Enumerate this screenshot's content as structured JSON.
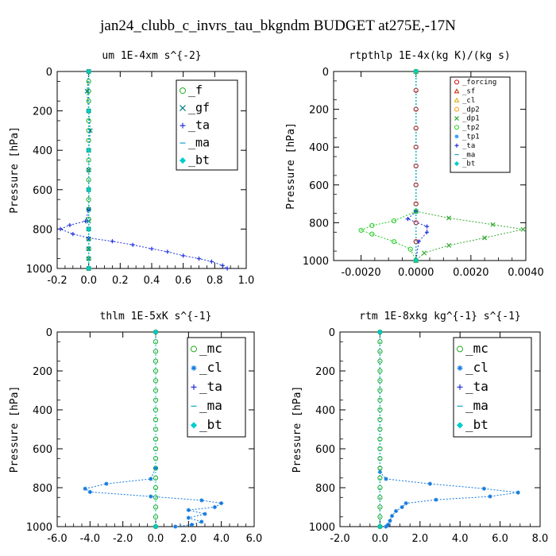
{
  "title": "jan24_clubb_c_invrs_tau_bkgndm  BUDGET at275E,-17N",
  "chart_data": [
    {
      "type": "line",
      "title": "um  1E-4xm s^{-2}",
      "ylabel": "Pressure [hPa]",
      "xlim": [
        -0.2,
        1.0
      ],
      "ylim": [
        0,
        1000
      ],
      "y_inverted": true,
      "xticks": [
        "-0.2",
        "0.0",
        "0.2",
        "0.4",
        "0.6",
        "0.8",
        "1.0"
      ],
      "xtick_values": [
        -0.2,
        0.0,
        0.2,
        0.4,
        0.6,
        0.8,
        1.0
      ],
      "yticks": [
        "0",
        "200",
        "400",
        "600",
        "800",
        "1000"
      ],
      "ytick_values": [
        0,
        200,
        400,
        600,
        800,
        1000
      ],
      "legend_position": "top-right",
      "legend_size": "large",
      "series": [
        {
          "name": "_f",
          "color": "#22aa22",
          "marker": "circle",
          "points": [
            [
              0,
              0
            ],
            [
              0,
              50
            ],
            [
              0,
              100
            ],
            [
              0,
              150
            ],
            [
              0,
              200
            ],
            [
              0,
              250
            ],
            [
              0,
              300
            ],
            [
              0,
              350
            ],
            [
              0,
              400
            ],
            [
              0,
              450
            ],
            [
              0,
              500
            ],
            [
              0,
              550
            ],
            [
              0,
              600
            ],
            [
              0,
              650
            ],
            [
              0,
              700
            ],
            [
              0,
              750
            ],
            [
              0,
              800
            ],
            [
              0,
              850
            ],
            [
              0,
              900
            ],
            [
              0,
              950
            ],
            [
              0,
              1000
            ]
          ]
        },
        {
          "name": "_gf",
          "color": "#008080",
          "marker": "x",
          "points": [
            [
              0,
              0
            ],
            [
              -0.01,
              100
            ],
            [
              0,
              200
            ],
            [
              0.01,
              300
            ],
            [
              0,
              400
            ],
            [
              0,
              500
            ],
            [
              0,
              600
            ],
            [
              0,
              700
            ],
            [
              0,
              760
            ],
            [
              0,
              800
            ],
            [
              0,
              850
            ],
            [
              0,
              900
            ],
            [
              0,
              950
            ],
            [
              0,
              1000
            ]
          ]
        },
        {
          "name": "_ta",
          "color": "#2233dd",
          "marker": "plus",
          "points": [
            [
              0,
              0
            ],
            [
              0,
              700
            ],
            [
              -0.02,
              760
            ],
            [
              -0.12,
              780
            ],
            [
              -0.18,
              800
            ],
            [
              -0.1,
              825
            ],
            [
              0.0,
              845
            ],
            [
              0.15,
              862
            ],
            [
              0.28,
              880
            ],
            [
              0.4,
              900
            ],
            [
              0.5,
              915
            ],
            [
              0.6,
              935
            ],
            [
              0.7,
              950
            ],
            [
              0.78,
              965
            ],
            [
              0.85,
              985
            ],
            [
              0.88,
              1000
            ]
          ]
        },
        {
          "name": "_ma",
          "color": "#22aacc",
          "marker": "dash",
          "points": [
            [
              0,
              0
            ],
            [
              0,
              1000
            ]
          ]
        },
        {
          "name": "_bt",
          "color": "#00cccc",
          "marker": "diamond",
          "points": [
            [
              0,
              0
            ],
            [
              0,
              200
            ],
            [
              0,
              400
            ],
            [
              0,
              600
            ],
            [
              0,
              800
            ],
            [
              0,
              1000
            ]
          ]
        }
      ]
    },
    {
      "type": "line",
      "title": "rtpthlp  1E-4x(kg K)/(kg s)",
      "ylabel": "Pressure [hPa]",
      "xlim": [
        -0.003,
        0.004
      ],
      "ylim": [
        0,
        1000
      ],
      "y_inverted": true,
      "xticks": [
        "-0.0020",
        "0.0000",
        "0.0020",
        "0.0040"
      ],
      "xtick_values": [
        -0.002,
        0.0,
        0.002,
        0.004
      ],
      "yticks": [
        "0",
        "200",
        "400",
        "600",
        "800",
        "1000"
      ],
      "ytick_values": [
        0,
        200,
        400,
        600,
        800,
        1000
      ],
      "legend_position": "top-right",
      "legend_size": "small",
      "series": [
        {
          "name": "_forcing",
          "color": "#cc0000",
          "marker": "circle",
          "points": [
            [
              0,
              0
            ],
            [
              0,
              100
            ],
            [
              0,
              200
            ],
            [
              0,
              300
            ],
            [
              0,
              400
            ],
            [
              0,
              500
            ],
            [
              0,
              600
            ],
            [
              0,
              700
            ],
            [
              0,
              800
            ],
            [
              0,
              900
            ],
            [
              0,
              1000
            ]
          ]
        },
        {
          "name": "_sf",
          "color": "#cc2200",
          "marker": "triangle",
          "points": [
            [
              0,
              0
            ],
            [
              0,
              1000
            ]
          ]
        },
        {
          "name": "_cl",
          "color": "#ddaa00",
          "marker": "triangle",
          "points": [
            [
              0,
              0
            ],
            [
              0,
              1000
            ]
          ]
        },
        {
          "name": "_dp2",
          "color": "#ff9900",
          "marker": "circle",
          "points": [
            [
              0,
              0
            ],
            [
              0,
              1000
            ]
          ]
        },
        {
          "name": "_dp1",
          "color": "#33aa33",
          "marker": "x",
          "points": [
            [
              0,
              0
            ],
            [
              0,
              740
            ],
            [
              0.0012,
              775
            ],
            [
              0.0028,
              810
            ],
            [
              0.0039,
              835
            ],
            [
              0.0025,
              880
            ],
            [
              0.0012,
              920
            ],
            [
              0.0003,
              960
            ],
            [
              0,
              1000
            ]
          ]
        },
        {
          "name": "_tp2",
          "color": "#22cc22",
          "marker": "circle",
          "points": [
            [
              0,
              0
            ],
            [
              0,
              740
            ],
            [
              -0.0008,
              790
            ],
            [
              -0.0016,
              815
            ],
            [
              -0.002,
              840
            ],
            [
              -0.0016,
              860
            ],
            [
              -0.0008,
              900
            ],
            [
              -0.0002,
              940
            ],
            [
              0,
              1000
            ]
          ]
        },
        {
          "name": "_tp1",
          "color": "#3399ff",
          "marker": "asterisk",
          "points": [
            [
              0,
              0
            ],
            [
              0,
              1000
            ]
          ]
        },
        {
          "name": "_ta",
          "color": "#2233dd",
          "marker": "plus",
          "points": [
            [
              0,
              0
            ],
            [
              0,
              740
            ],
            [
              -0.0003,
              780
            ],
            [
              0.0004,
              820
            ],
            [
              0.0004,
              850
            ],
            [
              0.0001,
              900
            ],
            [
              0,
              1000
            ]
          ]
        },
        {
          "name": "_ma",
          "color": "#22aacc",
          "marker": "dash",
          "points": [
            [
              0,
              0
            ],
            [
              0,
              1000
            ]
          ]
        },
        {
          "name": "_bt",
          "color": "#00cccc",
          "marker": "diamond",
          "points": [
            [
              0,
              0
            ],
            [
              0,
              1000
            ]
          ]
        }
      ]
    },
    {
      "type": "line",
      "title": "thlm  1E-5xK s^{-1}",
      "ylabel": "Pressure [hPa]",
      "xlim": [
        -6.0,
        6.0
      ],
      "ylim": [
        0,
        1000
      ],
      "y_inverted": true,
      "xticks": [
        "-6.0",
        "-4.0",
        "-2.0",
        "0.0",
        "2.0",
        "4.0",
        "6.0"
      ],
      "xtick_values": [
        -6.0,
        -4.0,
        -2.0,
        0.0,
        2.0,
        4.0,
        6.0
      ],
      "yticks": [
        "0",
        "200",
        "400",
        "600",
        "800",
        "1000"
      ],
      "ytick_values": [
        0,
        200,
        400,
        600,
        800,
        1000
      ],
      "legend_position": "top-right",
      "legend_size": "large",
      "series": [
        {
          "name": "_mc",
          "color": "#22aa22",
          "marker": "circle",
          "points": [
            [
              0,
              0
            ],
            [
              0,
              50
            ],
            [
              0,
              100
            ],
            [
              0,
              150
            ],
            [
              0,
              200
            ],
            [
              0,
              250
            ],
            [
              0,
              300
            ],
            [
              0,
              350
            ],
            [
              0,
              400
            ],
            [
              0,
              450
            ],
            [
              0,
              500
            ],
            [
              0,
              550
            ],
            [
              0,
              600
            ],
            [
              0,
              650
            ],
            [
              0,
              700
            ],
            [
              0,
              750
            ],
            [
              0,
              800
            ],
            [
              0,
              850
            ],
            [
              0,
              900
            ],
            [
              0,
              950
            ],
            [
              0,
              1000
            ]
          ]
        },
        {
          "name": "_cl",
          "color": "#1177dd",
          "marker": "asterisk",
          "points": [
            [
              0,
              0
            ],
            [
              0,
              700
            ],
            [
              -0.3,
              755
            ],
            [
              -3.0,
              780
            ],
            [
              -4.3,
              805
            ],
            [
              -4.0,
              822
            ],
            [
              -0.3,
              845
            ],
            [
              2.8,
              865
            ],
            [
              4.0,
              880
            ],
            [
              3.6,
              900
            ],
            [
              2.0,
              915
            ],
            [
              3.0,
              935
            ],
            [
              2.0,
              955
            ],
            [
              2.8,
              975
            ],
            [
              2.2,
              990
            ],
            [
              1.2,
              1000
            ]
          ]
        },
        {
          "name": "_ta",
          "color": "#2233dd",
          "marker": "plus",
          "points": [
            [
              0,
              0
            ],
            [
              0,
              1000
            ]
          ]
        },
        {
          "name": "_ma",
          "color": "#22aacc",
          "marker": "dash",
          "points": [
            [
              0,
              0
            ],
            [
              0,
              1000
            ]
          ]
        },
        {
          "name": "_bt",
          "color": "#00cccc",
          "marker": "diamond",
          "points": [
            [
              0,
              0
            ],
            [
              0,
              1000
            ]
          ]
        }
      ]
    },
    {
      "type": "line",
      "title": "rtm  1E-8xkg kg^{-1} s^{-1}",
      "ylabel": "Pressure [hPa]",
      "xlim": [
        -2.0,
        8.0
      ],
      "ylim": [
        0,
        1000
      ],
      "y_inverted": true,
      "xticks": [
        "-2.0",
        "0.0",
        "2.0",
        "4.0",
        "6.0",
        "8.0"
      ],
      "xtick_values": [
        -2.0,
        0.0,
        2.0,
        4.0,
        6.0,
        8.0
      ],
      "yticks": [
        "0",
        "200",
        "400",
        "600",
        "800",
        "1000"
      ],
      "ytick_values": [
        0,
        200,
        400,
        600,
        800,
        1000
      ],
      "legend_position": "top-right",
      "legend_size": "large",
      "series": [
        {
          "name": "_mc",
          "color": "#22aa22",
          "marker": "circle",
          "points": [
            [
              0,
              0
            ],
            [
              0,
              50
            ],
            [
              0,
              100
            ],
            [
              0,
              150
            ],
            [
              0,
              200
            ],
            [
              0,
              250
            ],
            [
              0,
              300
            ],
            [
              0,
              350
            ],
            [
              0,
              400
            ],
            [
              0,
              450
            ],
            [
              0,
              500
            ],
            [
              0,
              550
            ],
            [
              0,
              600
            ],
            [
              0,
              650
            ],
            [
              0,
              700
            ],
            [
              0,
              750
            ],
            [
              0,
              800
            ],
            [
              0,
              850
            ],
            [
              0,
              900
            ],
            [
              0,
              950
            ],
            [
              0,
              1000
            ]
          ]
        },
        {
          "name": "_cl",
          "color": "#1177dd",
          "marker": "asterisk",
          "points": [
            [
              0,
              0
            ],
            [
              0,
              720
            ],
            [
              0.3,
              755
            ],
            [
              2.5,
              780
            ],
            [
              5.2,
              805
            ],
            [
              6.9,
              825
            ],
            [
              5.5,
              845
            ],
            [
              2.8,
              862
            ],
            [
              1.3,
              880
            ],
            [
              1.1,
              900
            ],
            [
              0.8,
              920
            ],
            [
              0.6,
              945
            ],
            [
              0.5,
              970
            ],
            [
              0.4,
              990
            ],
            [
              0.3,
              1000
            ]
          ]
        },
        {
          "name": "_ta",
          "color": "#2233dd",
          "marker": "plus",
          "points": [
            [
              0,
              0
            ],
            [
              0,
              1000
            ]
          ]
        },
        {
          "name": "_ma",
          "color": "#22aacc",
          "marker": "dash",
          "points": [
            [
              0,
              0
            ],
            [
              0,
              1000
            ]
          ]
        },
        {
          "name": "_bt",
          "color": "#00cccc",
          "marker": "diamond",
          "points": [
            [
              0,
              0
            ],
            [
              0,
              1000
            ]
          ]
        }
      ]
    }
  ]
}
